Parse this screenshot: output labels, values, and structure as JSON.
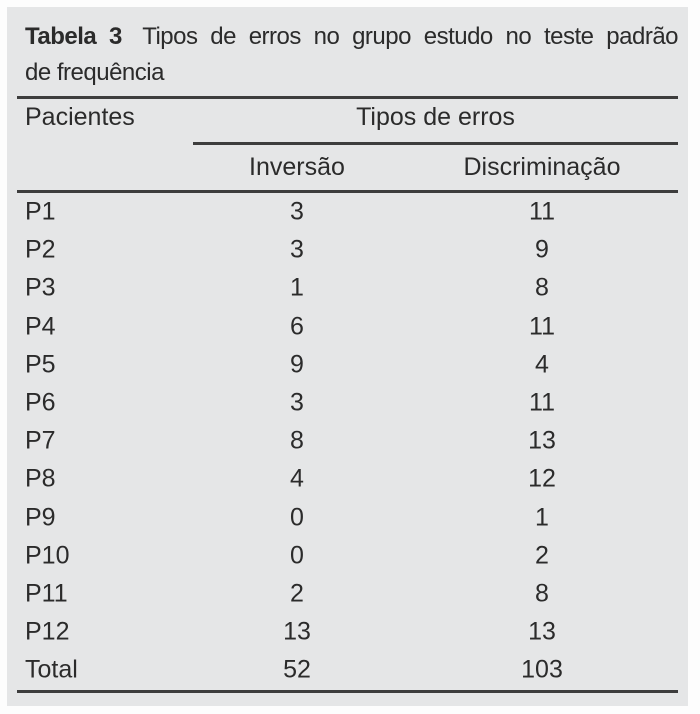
{
  "meta": {
    "panel_bg_color": "#e5e6e7",
    "text_color": "#2b2b2b",
    "rule_color": "#3d3d3d",
    "page_bg_color": "#fdfdfd"
  },
  "title": {
    "label": "Tabela 3",
    "line1_rest": "Tipos de erros no grupo estudo no teste padrão",
    "line2": "de frequência"
  },
  "table": {
    "col_patient_header": "Pacientes",
    "group_header": "Tipos de erros",
    "sub_headers": [
      "Inversão",
      "Discriminação"
    ],
    "rows": [
      {
        "patient": "P1",
        "inversao": "3",
        "discriminacao": "11"
      },
      {
        "patient": "P2",
        "inversao": "3",
        "discriminacao": "9"
      },
      {
        "patient": "P3",
        "inversao": "1",
        "discriminacao": "8"
      },
      {
        "patient": "P4",
        "inversao": "6",
        "discriminacao": "11"
      },
      {
        "patient": "P5",
        "inversao": "9",
        "discriminacao": "4"
      },
      {
        "patient": "P6",
        "inversao": "3",
        "discriminacao": "11"
      },
      {
        "patient": "P7",
        "inversao": "8",
        "discriminacao": "13"
      },
      {
        "patient": "P8",
        "inversao": "4",
        "discriminacao": "12"
      },
      {
        "patient": "P9",
        "inversao": "0",
        "discriminacao": "1"
      },
      {
        "patient": "P10",
        "inversao": "0",
        "discriminacao": "2"
      },
      {
        "patient": "P11",
        "inversao": "2",
        "discriminacao": "8"
      },
      {
        "patient": "P12",
        "inversao": "13",
        "discriminacao": "13"
      },
      {
        "patient": "Total",
        "inversao": "52",
        "discriminacao": "103"
      }
    ]
  },
  "chart_data": {
    "type": "table",
    "title": "Tabela 3 Tipos de erros no grupo estudo no teste padrão de frequência",
    "columns": [
      "Pacientes",
      "Inversão",
      "Discriminação"
    ],
    "rows": [
      [
        "P1",
        3,
        11
      ],
      [
        "P2",
        3,
        9
      ],
      [
        "P3",
        1,
        8
      ],
      [
        "P4",
        6,
        11
      ],
      [
        "P5",
        9,
        4
      ],
      [
        "P6",
        3,
        11
      ],
      [
        "P7",
        8,
        13
      ],
      [
        "P8",
        4,
        12
      ],
      [
        "P9",
        0,
        1
      ],
      [
        "P10",
        0,
        2
      ],
      [
        "P11",
        2,
        8
      ],
      [
        "P12",
        13,
        13
      ],
      [
        "Total",
        52,
        103
      ]
    ]
  }
}
